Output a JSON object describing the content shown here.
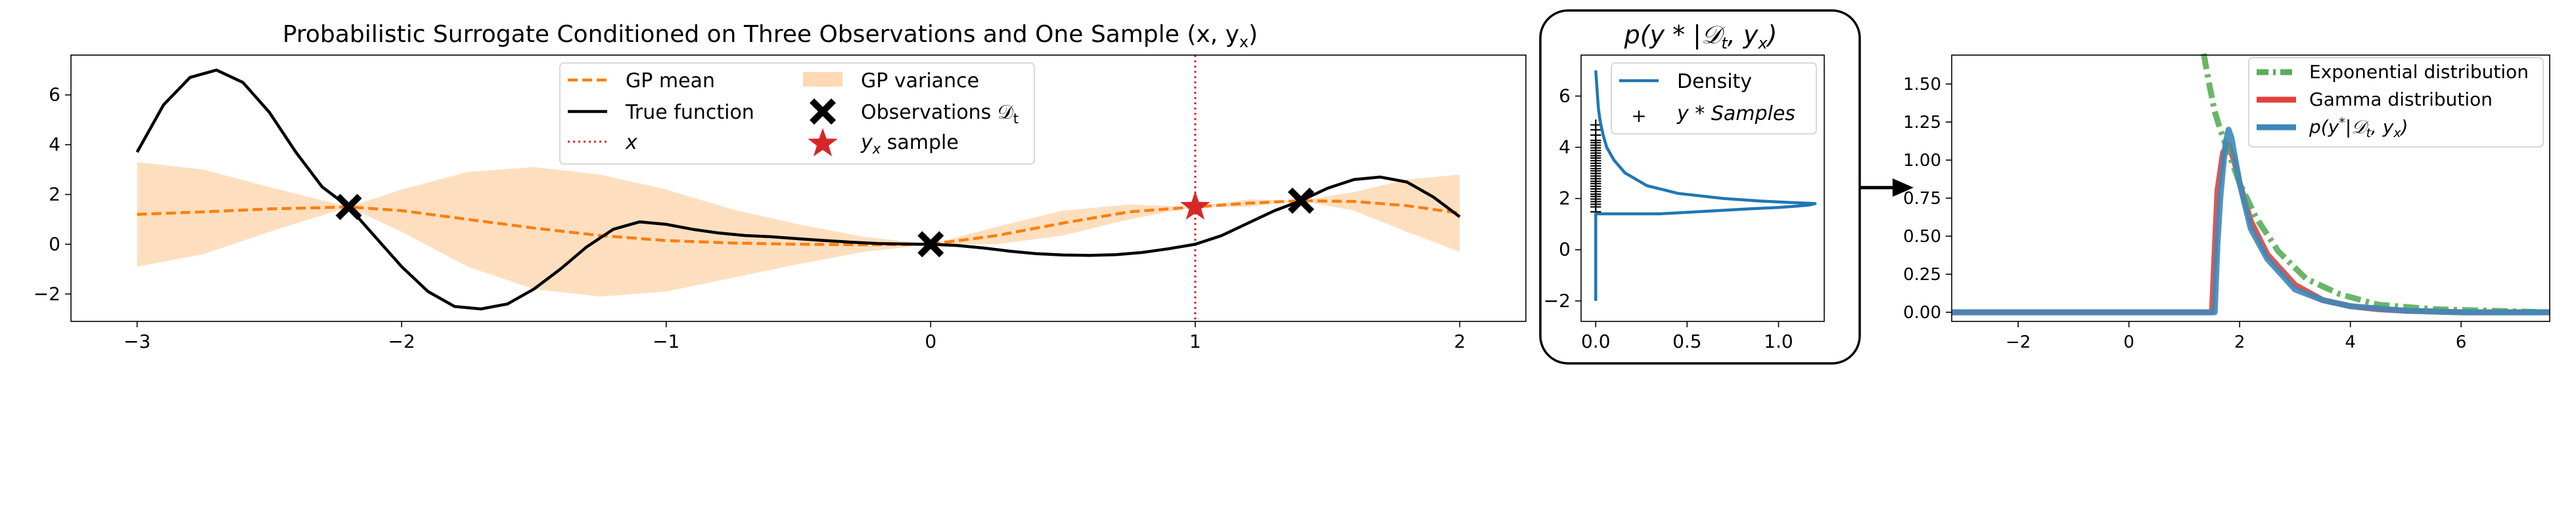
{
  "chart_data": [
    {
      "type": "line",
      "title": "Probabilistic Surrogate Conditioned on Three Observations and One Sample (x, y",
      "title_sub": "x",
      "title_close": ")",
      "xlim": [
        -3.25,
        2.25
      ],
      "ylim": [
        -3.1,
        7.6
      ],
      "xticks": [
        -3,
        -2,
        -1,
        0,
        1,
        2
      ],
      "yticks": [
        -2,
        0,
        2,
        4,
        6
      ],
      "grid": false,
      "legend_placement": "top-center",
      "legend": {
        "gp_mean": "GP mean",
        "gp_variance": "GP variance",
        "true_function": "True function",
        "observations": "Observations 𝒟",
        "observations_sub": "t",
        "x_line": "x",
        "yx_sample": "y",
        "yx_sample_sub": "x",
        "yx_sample_suffix": " sample"
      },
      "true_function": {
        "x": [
          -3.0,
          -2.9,
          -2.8,
          -2.7,
          -2.6,
          -2.5,
          -2.4,
          -2.3,
          -2.2,
          -2.1,
          -2.0,
          -1.9,
          -1.8,
          -1.7,
          -1.6,
          -1.5,
          -1.4,
          -1.3,
          -1.2,
          -1.1,
          -1.0,
          -0.9,
          -0.8,
          -0.7,
          -0.6,
          -0.5,
          -0.4,
          -0.3,
          -0.2,
          -0.1,
          0.0,
          0.1,
          0.2,
          0.3,
          0.4,
          0.5,
          0.6,
          0.7,
          0.8,
          0.9,
          1.0,
          1.1,
          1.2,
          1.3,
          1.4,
          1.5,
          1.6,
          1.7,
          1.8,
          1.9,
          2.0
        ],
        "y": [
          3.7,
          5.6,
          6.7,
          7.0,
          6.5,
          5.3,
          3.7,
          2.3,
          1.5,
          0.3,
          -0.9,
          -1.9,
          -2.5,
          -2.6,
          -2.4,
          -1.8,
          -1.0,
          -0.1,
          0.6,
          0.9,
          0.8,
          0.6,
          0.45,
          0.35,
          0.3,
          0.22,
          0.15,
          0.08,
          0.03,
          0.01,
          0.0,
          -0.05,
          -0.15,
          -0.28,
          -0.38,
          -0.43,
          -0.45,
          -0.42,
          -0.33,
          -0.18,
          0.0,
          0.35,
          0.85,
          1.35,
          1.75,
          2.25,
          2.6,
          2.7,
          2.5,
          1.9,
          1.1
        ]
      },
      "gp_mean": {
        "x": [
          -3.0,
          -2.75,
          -2.5,
          -2.2,
          -2.0,
          -1.75,
          -1.5,
          -1.25,
          -1.0,
          -0.75,
          -0.5,
          -0.25,
          0.0,
          0.25,
          0.5,
          0.75,
          1.0,
          1.2,
          1.4,
          1.6,
          1.8,
          2.0
        ],
        "y": [
          1.2,
          1.3,
          1.42,
          1.5,
          1.35,
          1.0,
          0.65,
          0.35,
          0.15,
          0.05,
          0.0,
          -0.02,
          0.0,
          0.35,
          0.85,
          1.3,
          1.5,
          1.65,
          1.75,
          1.72,
          1.55,
          1.25
        ]
      },
      "gp_variance": {
        "x": [
          -3.0,
          -2.75,
          -2.5,
          -2.2,
          -2.0,
          -1.75,
          -1.5,
          -1.25,
          -1.0,
          -0.75,
          -0.5,
          -0.25,
          0.0,
          0.25,
          0.5,
          0.75,
          1.0,
          1.2,
          1.4,
          1.6,
          1.8,
          2.0
        ],
        "upper": [
          3.3,
          3.0,
          2.3,
          1.5,
          2.2,
          2.9,
          3.1,
          2.8,
          2.2,
          1.4,
          0.8,
          0.3,
          0.0,
          0.7,
          1.35,
          1.6,
          1.5,
          1.8,
          1.75,
          2.1,
          2.6,
          2.8
        ],
        "lower": [
          -0.9,
          -0.4,
          0.5,
          1.5,
          0.5,
          -0.9,
          -1.8,
          -2.1,
          -1.9,
          -1.35,
          -0.8,
          -0.3,
          0.0,
          0.0,
          0.35,
          1.0,
          1.5,
          1.5,
          1.75,
          1.35,
          0.5,
          -0.3
        ]
      },
      "observations": [
        {
          "x": -2.2,
          "y": 1.5
        },
        {
          "x": 0.0,
          "y": 0.0
        },
        {
          "x": 1.4,
          "y": 1.75
        }
      ],
      "x_vline": 1.0,
      "yx_sample_point": {
        "x": 1.0,
        "y": 1.5
      }
    },
    {
      "type": "line",
      "title": "p(y * |𝒟",
      "title_sub": "t",
      "title_close": ", y",
      "title_sub2": "x",
      "title_end": ")",
      "xlim": [
        -0.08,
        1.25
      ],
      "ylim": [
        -2.8,
        7.6
      ],
      "xticks": [
        0.0,
        0.5,
        1.0
      ],
      "xtick_labels": [
        "0.0",
        "0.5",
        "1.0"
      ],
      "yticks": [
        -2,
        0,
        2,
        4,
        6
      ],
      "grid": false,
      "legend_placement": "top-right",
      "legend": {
        "density": "Density",
        "samples": "y * Samples"
      },
      "density": {
        "y": [
          -2.0,
          1.4,
          1.4,
          1.5,
          1.6,
          1.65,
          1.7,
          1.75,
          1.8,
          1.85,
          1.9,
          2.0,
          2.2,
          2.5,
          3.0,
          3.5,
          4.0,
          4.5,
          5.0,
          5.5,
          6.0,
          7.0
        ],
        "x": [
          0.0,
          0.0,
          0.35,
          0.6,
          0.85,
          1.0,
          1.1,
          1.17,
          1.2,
          1.05,
          0.9,
          0.7,
          0.45,
          0.28,
          0.16,
          0.1,
          0.06,
          0.04,
          0.025,
          0.015,
          0.01,
          0.0
        ]
      },
      "samples_y": [
        1.5,
        1.7,
        1.8,
        1.9,
        2.0,
        2.1,
        2.2,
        2.3,
        2.4,
        2.5,
        2.6,
        2.7,
        2.8,
        2.9,
        3.0,
        3.1,
        3.2,
        3.3,
        3.4,
        3.5,
        3.6,
        3.7,
        3.8,
        3.9,
        4.0,
        4.1,
        4.2,
        4.3,
        4.5,
        4.7,
        4.9
      ]
    },
    {
      "type": "line",
      "title": "",
      "xlim": [
        -3.2,
        7.6
      ],
      "ylim": [
        -0.06,
        1.69
      ],
      "xticks": [
        -2,
        0,
        2,
        4,
        6
      ],
      "yticks": [
        0.0,
        0.25,
        0.5,
        0.75,
        1.0,
        1.25,
        1.5
      ],
      "ytick_labels": [
        "0.00",
        "0.25",
        "0.50",
        "0.75",
        "1.00",
        "1.25",
        "1.50"
      ],
      "grid": false,
      "legend_placement": "top-right",
      "legend": {
        "exponential": "Exponential distribution",
        "gamma": "Gamma distribution",
        "density_prefix": "p(y",
        "density_sup": "*",
        "density_mid": "|𝒟",
        "density_sub": "t",
        "density_mid2": ", y",
        "density_sub2": "x",
        "density_end": ")"
      },
      "exponential": {
        "x": [
          1.35,
          1.45,
          1.55,
          1.65,
          1.8,
          2.0,
          2.3,
          2.7,
          3.2,
          3.8,
          4.5,
          5.5,
          7.6
        ],
        "y": [
          1.7,
          1.5,
          1.32,
          1.2,
          1.05,
          0.85,
          0.62,
          0.4,
          0.22,
          0.12,
          0.05,
          0.02,
          0.0
        ]
      },
      "gamma": {
        "x": [
          -3.2,
          1.5,
          1.6,
          1.7,
          1.8,
          1.9,
          2.0,
          2.2,
          2.5,
          3.0,
          3.5,
          4.0,
          4.5,
          5.0,
          6.0,
          7.6
        ],
        "y": [
          0.0,
          0.0,
          0.8,
          1.05,
          1.1,
          1.0,
          0.85,
          0.6,
          0.38,
          0.18,
          0.08,
          0.04,
          0.02,
          0.01,
          0.0,
          0.0
        ]
      },
      "density": {
        "x": [
          -3.2,
          1.55,
          1.6,
          1.65,
          1.7,
          1.75,
          1.8,
          1.85,
          1.9,
          2.0,
          2.2,
          2.5,
          3.0,
          3.5,
          4.0,
          5.0,
          6.0,
          7.6
        ],
        "y": [
          0.0,
          0.0,
          0.45,
          0.75,
          0.95,
          1.12,
          1.2,
          1.15,
          1.05,
          0.85,
          0.55,
          0.35,
          0.15,
          0.08,
          0.04,
          0.01,
          0.0,
          0.0
        ]
      }
    }
  ]
}
